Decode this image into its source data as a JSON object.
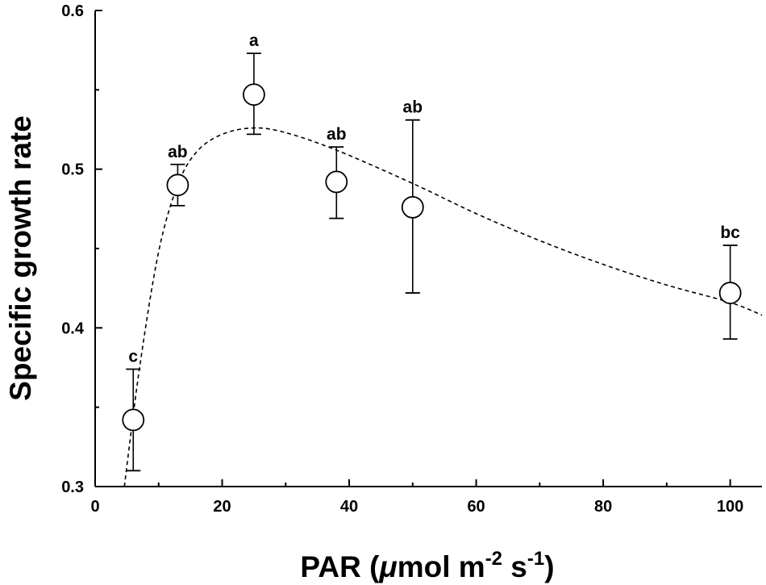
{
  "chart_data": {
    "type": "scatter",
    "xlabel": {
      "main": "PAR (",
      "mu": "μ",
      "mol": "mol m",
      "exp1": "-2",
      "s": " s",
      "exp2": "-1",
      "close": ")"
    },
    "ylabel": "Specific growth rate",
    "xlim": [
      0,
      105
    ],
    "ylim": [
      0.3,
      0.6
    ],
    "xticks": [
      0,
      20,
      40,
      60,
      80,
      100
    ],
    "xtick_labels": [
      "0",
      "20",
      "40",
      "60",
      "80",
      "100"
    ],
    "yticks": [
      0.3,
      0.4,
      0.5,
      0.6
    ],
    "ytick_labels": [
      "0.3",
      "0.4",
      "0.5",
      "0.6"
    ],
    "grid": false,
    "points": [
      {
        "x": 6,
        "y": 0.342,
        "err_lo": 0.31,
        "err_hi": 0.374,
        "label": "c"
      },
      {
        "x": 13,
        "y": 0.49,
        "err_lo": 0.477,
        "err_hi": 0.503,
        "label": "ab"
      },
      {
        "x": 25,
        "y": 0.547,
        "err_lo": 0.522,
        "err_hi": 0.573,
        "label": "a"
      },
      {
        "x": 38,
        "y": 0.492,
        "err_lo": 0.469,
        "err_hi": 0.514,
        "label": "ab"
      },
      {
        "x": 50,
        "y": 0.476,
        "err_lo": 0.422,
        "err_hi": 0.531,
        "label": "ab"
      },
      {
        "x": 100,
        "y": 0.422,
        "err_lo": 0.393,
        "err_hi": 0.452,
        "label": "bc"
      }
    ],
    "fit_curve": [
      [
        4.6,
        0.3
      ],
      [
        7,
        0.375
      ],
      [
        10,
        0.448
      ],
      [
        13,
        0.49
      ],
      [
        16,
        0.511
      ],
      [
        20,
        0.522
      ],
      [
        25,
        0.526
      ],
      [
        30,
        0.523
      ],
      [
        38,
        0.512
      ],
      [
        50,
        0.491
      ],
      [
        60,
        0.472
      ],
      [
        70,
        0.455
      ],
      [
        80,
        0.44
      ],
      [
        90,
        0.427
      ],
      [
        100,
        0.416
      ],
      [
        105,
        0.408
      ]
    ]
  }
}
